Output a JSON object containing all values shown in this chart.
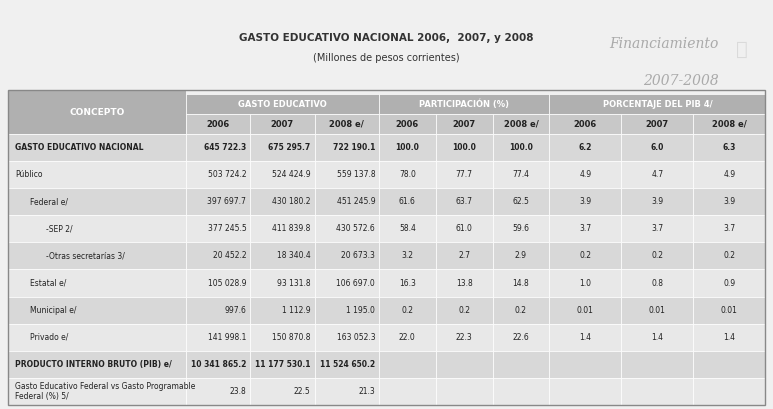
{
  "title1": "GASTO EDUCATIVO NACIONAL 2006,  2007, y 2008",
  "title2": "(Millones de pesos corrientes)",
  "watermark_line1": "Financiamiento",
  "watermark_line2": "2007-2008",
  "header_bg": "#b0b0b0",
  "subheader_bg": "#c8c8c8",
  "row_bg_dark": "#d8d8d8",
  "row_bg_light": "#e8e8e8",
  "col_header_concepto": "CONCEPTO",
  "col_group1": "GASTO EDUCATIVO",
  "col_group2": "PARTICIPACIÓN (%)",
  "col_group3": "PORCENTAJE DEL PIB",
  "sub_years": [
    "2006",
    "2007",
    "2008 e/"
  ],
  "rows": [
    {
      "concepto": "GASTO EDUCATIVO NACIONAL",
      "bold": true,
      "indent": 0,
      "gasto": [
        "645 722.3",
        "675 295.7",
        "722 190.1"
      ],
      "part": [
        "100.0",
        "100.0",
        "100.0"
      ],
      "pib": [
        "6.2",
        "6.0",
        "6.3"
      ]
    },
    {
      "concepto": "Público",
      "bold": false,
      "indent": 0,
      "gasto": [
        "503 724.2",
        "524 424.9",
        "559 137.8"
      ],
      "part": [
        "78.0",
        "77.7",
        "77.4"
      ],
      "pib": [
        "4.9",
        "4.7",
        "4.9"
      ]
    },
    {
      "concepto": "Federal e/",
      "bold": false,
      "indent": 1,
      "gasto": [
        "397 697.7",
        "430 180.2",
        "451 245.9"
      ],
      "part": [
        "61.6",
        "63.7",
        "62.5"
      ],
      "pib": [
        "3.9",
        "3.9",
        "3.9"
      ]
    },
    {
      "concepto": "-SEP 2/",
      "bold": false,
      "indent": 2,
      "gasto": [
        "377 245.5",
        "411 839.8",
        "430 572.6"
      ],
      "part": [
        "58.4",
        "61.0",
        "59.6"
      ],
      "pib": [
        "3.7",
        "3.7",
        "3.7"
      ]
    },
    {
      "concepto": "-Otras secretarías 3/",
      "bold": false,
      "indent": 2,
      "gasto": [
        "20 452.2",
        "18 340.4",
        "20 673.3"
      ],
      "part": [
        "3.2",
        "2.7",
        "2.9"
      ],
      "pib": [
        "0.2",
        "0.2",
        "0.2"
      ]
    },
    {
      "concepto": "Estatal e/",
      "bold": false,
      "indent": 1,
      "gasto": [
        "105 028.9",
        "93 131.8",
        "106 697.0"
      ],
      "part": [
        "16.3",
        "13.8",
        "14.8"
      ],
      "pib": [
        "1.0",
        "0.8",
        "0.9"
      ]
    },
    {
      "concepto": "Municipal e/",
      "bold": false,
      "indent": 1,
      "gasto": [
        "997.6",
        "1 112.9",
        "1 195.0"
      ],
      "part": [
        "0.2",
        "0.2",
        "0.2"
      ],
      "pib": [
        "0.01",
        "0.01",
        "0.01"
      ]
    },
    {
      "concepto": "Privado e/",
      "bold": false,
      "indent": 1,
      "gasto": [
        "141 998.1",
        "150 870.8",
        "163 052.3"
      ],
      "part": [
        "22.0",
        "22.3",
        "22.6"
      ],
      "pib": [
        "1.4",
        "1.4",
        "1.4"
      ]
    },
    {
      "concepto": "PRODUCTO INTERNO BRUTO (PIB) e/",
      "bold": true,
      "indent": 0,
      "gasto": [
        "10 341 865.2",
        "11 177 530.1",
        "11 524 650.2"
      ],
      "part": [
        "",
        "",
        ""
      ],
      "pib": [
        "",
        "",
        ""
      ]
    },
    {
      "concepto": "Gasto Educativo Federal vs Gasto Programable\nFederal (%) 5/",
      "bold": false,
      "indent": 0,
      "gasto": [
        "23.8",
        "22.5",
        "21.3"
      ],
      "part": [
        "",
        "",
        ""
      ],
      "pib": [
        "",
        "",
        ""
      ]
    }
  ],
  "bg_color": "#f0f0f0",
  "table_outer_bg": "#ffffff"
}
